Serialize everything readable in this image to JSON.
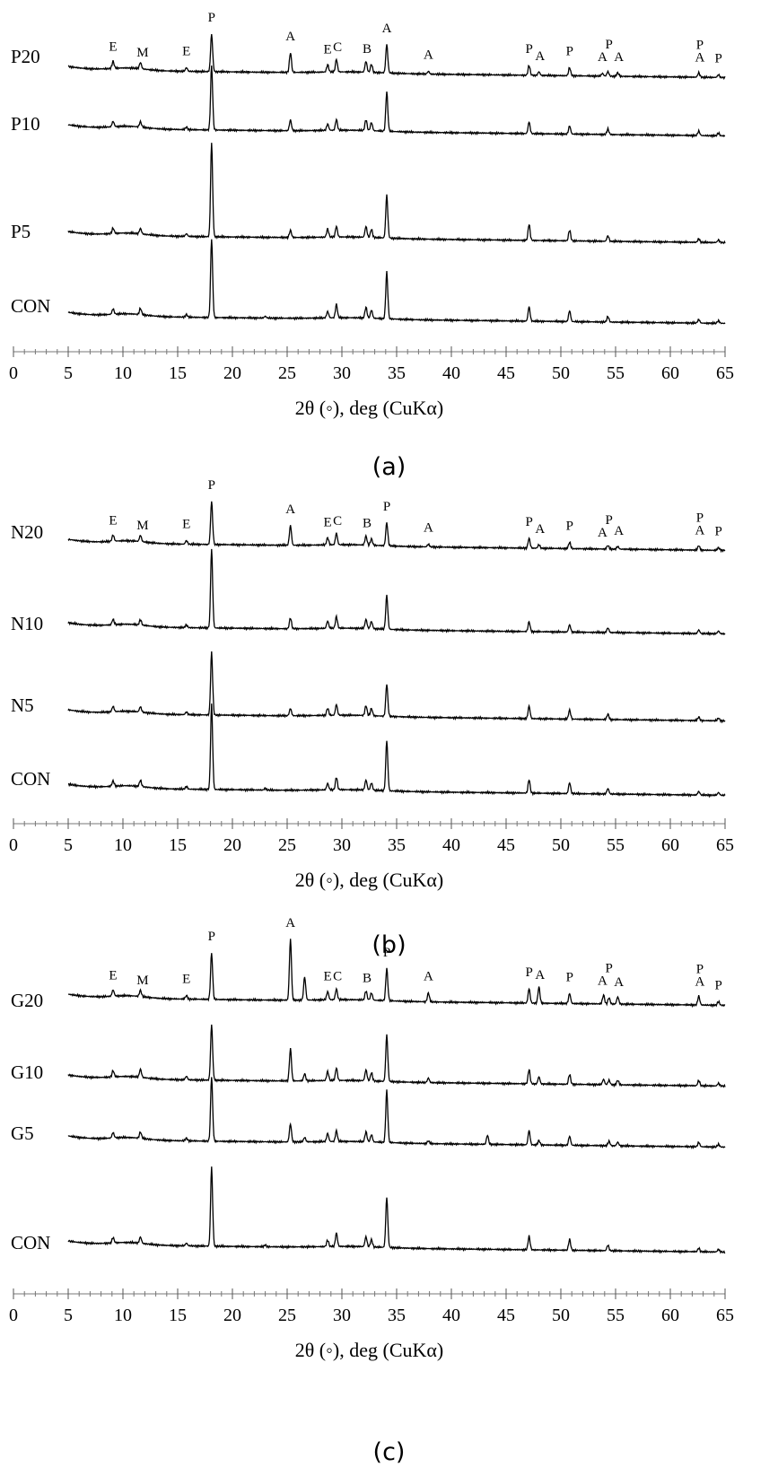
{
  "chart_data": [
    {
      "type": "line",
      "caption": "(a)",
      "xlabel": "2θ (◦), deg (CuKα)",
      "xlim": [
        0,
        65
      ],
      "xticks": [
        0,
        5,
        10,
        15,
        20,
        25,
        30,
        35,
        40,
        45,
        50,
        55,
        60,
        65
      ],
      "series": [
        {
          "name": "P20",
          "peaks": [
            [
              9.1,
              8
            ],
            [
              11.6,
              7
            ],
            [
              15.8,
              4
            ],
            [
              18.1,
              42
            ],
            [
              25.3,
              22
            ],
            [
              28.7,
              8
            ],
            [
              29.5,
              14
            ],
            [
              32.2,
              12
            ],
            [
              32.7,
              9
            ],
            [
              34.1,
              32
            ],
            [
              37.9,
              3
            ],
            [
              47.1,
              11
            ],
            [
              48.0,
              4
            ],
            [
              50.8,
              9
            ],
            [
              53.8,
              3
            ],
            [
              54.3,
              5
            ],
            [
              55.2,
              4
            ],
            [
              62.6,
              5
            ],
            [
              64.4,
              3
            ]
          ]
        },
        {
          "name": "P10",
          "peaks": [
            [
              9.1,
              6
            ],
            [
              11.6,
              6
            ],
            [
              15.8,
              3
            ],
            [
              18.1,
              72
            ],
            [
              25.3,
              12
            ],
            [
              28.7,
              7
            ],
            [
              29.5,
              12
            ],
            [
              32.2,
              12
            ],
            [
              32.7,
              9
            ],
            [
              34.1,
              44
            ],
            [
              47.1,
              13
            ],
            [
              50.8,
              9
            ],
            [
              54.3,
              6
            ],
            [
              62.6,
              5
            ],
            [
              64.4,
              3
            ]
          ]
        },
        {
          "name": "P5",
          "peaks": [
            [
              9.1,
              6
            ],
            [
              11.6,
              6
            ],
            [
              15.8,
              3
            ],
            [
              18.1,
              105
            ],
            [
              25.3,
              8
            ],
            [
              28.7,
              9
            ],
            [
              29.5,
              12
            ],
            [
              32.2,
              12
            ],
            [
              32.7,
              9
            ],
            [
              34.1,
              48
            ],
            [
              47.1,
              18
            ],
            [
              50.8,
              12
            ],
            [
              54.3,
              6
            ],
            [
              62.6,
              4
            ],
            [
              64.4,
              3
            ]
          ]
        },
        {
          "name": "CON",
          "peaks": [
            [
              9.1,
              6
            ],
            [
              11.6,
              7
            ],
            [
              15.8,
              3
            ],
            [
              18.1,
              88
            ],
            [
              23.0,
              2
            ],
            [
              28.7,
              7
            ],
            [
              29.5,
              15
            ],
            [
              32.2,
              12
            ],
            [
              32.7,
              9
            ],
            [
              34.1,
              52
            ],
            [
              47.1,
              16
            ],
            [
              50.8,
              12
            ],
            [
              54.3,
              6
            ],
            [
              62.6,
              4
            ],
            [
              64.4,
              3
            ]
          ]
        }
      ],
      "phase_labels": [
        {
          "text": "E",
          "x": 9.1
        },
        {
          "text": "M",
          "x": 11.8
        },
        {
          "text": "E",
          "x": 15.8
        },
        {
          "text": "P",
          "x": 18.1
        },
        {
          "text": "A",
          "x": 25.3
        },
        {
          "text": "E",
          "x": 28.7
        },
        {
          "text": "C",
          "x": 29.6
        },
        {
          "text": "B",
          "x": 32.3
        },
        {
          "text": "A",
          "x": 34.1
        },
        {
          "text": "A",
          "x": 37.9
        },
        {
          "text": "P",
          "x": 47.1
        },
        {
          "text": "A",
          "x": 48.1
        },
        {
          "text": "P",
          "x": 50.8
        },
        {
          "text": "A",
          "x": 53.8
        },
        {
          "text": "P",
          "x": 54.4
        },
        {
          "text": "A",
          "x": 55.3
        },
        {
          "text": "A",
          "x": 62.7
        },
        {
          "text": "P",
          "x": 62.7
        },
        {
          "text": "P",
          "x": 64.4
        }
      ]
    },
    {
      "type": "line",
      "caption": "(b)",
      "xlabel": "2θ (◦), deg (CuKα)",
      "xlim": [
        0,
        65
      ],
      "xticks": [
        0,
        5,
        10,
        15,
        20,
        25,
        30,
        35,
        40,
        45,
        50,
        55,
        60,
        65
      ],
      "series": [
        {
          "name": "N20",
          "peaks": [
            [
              9.1,
              7
            ],
            [
              11.6,
              7
            ],
            [
              15.8,
              4
            ],
            [
              18.1,
              48
            ],
            [
              25.3,
              22
            ],
            [
              28.7,
              8
            ],
            [
              29.5,
              13
            ],
            [
              32.2,
              10
            ],
            [
              32.7,
              7
            ],
            [
              34.1,
              26
            ],
            [
              37.9,
              3
            ],
            [
              47.1,
              11
            ],
            [
              48.0,
              4
            ],
            [
              50.8,
              7
            ],
            [
              54.3,
              4
            ],
            [
              55.2,
              3
            ],
            [
              62.6,
              5
            ],
            [
              64.4,
              3
            ]
          ]
        },
        {
          "name": "N10",
          "peaks": [
            [
              9.1,
              6
            ],
            [
              11.6,
              6
            ],
            [
              15.8,
              3
            ],
            [
              18.1,
              88
            ],
            [
              25.3,
              12
            ],
            [
              28.7,
              8
            ],
            [
              29.5,
              13
            ],
            [
              32.2,
              10
            ],
            [
              32.7,
              8
            ],
            [
              34.1,
              38
            ],
            [
              47.1,
              11
            ],
            [
              50.8,
              8
            ],
            [
              54.3,
              5
            ],
            [
              62.6,
              4
            ],
            [
              64.4,
              3
            ]
          ]
        },
        {
          "name": "N5",
          "peaks": [
            [
              9.1,
              6
            ],
            [
              11.6,
              6
            ],
            [
              15.8,
              3
            ],
            [
              18.1,
              70
            ],
            [
              25.3,
              8
            ],
            [
              28.7,
              8
            ],
            [
              29.5,
              12
            ],
            [
              32.2,
              11
            ],
            [
              32.7,
              8
            ],
            [
              34.1,
              36
            ],
            [
              47.1,
              14
            ],
            [
              50.8,
              10
            ],
            [
              54.3,
              6
            ],
            [
              62.6,
              4
            ],
            [
              64.4,
              3
            ]
          ]
        },
        {
          "name": "CON",
          "peaks": [
            [
              9.1,
              6
            ],
            [
              11.6,
              7
            ],
            [
              15.8,
              3
            ],
            [
              18.1,
              95
            ],
            [
              23.0,
              2
            ],
            [
              28.7,
              7
            ],
            [
              29.5,
              14
            ],
            [
              32.2,
              11
            ],
            [
              32.7,
              8
            ],
            [
              34.1,
              56
            ],
            [
              47.1,
              15
            ],
            [
              50.8,
              12
            ],
            [
              54.3,
              6
            ],
            [
              62.6,
              4
            ],
            [
              64.4,
              3
            ]
          ]
        }
      ],
      "phase_labels": [
        {
          "text": "E",
          "x": 9.1
        },
        {
          "text": "M",
          "x": 11.8
        },
        {
          "text": "E",
          "x": 15.8
        },
        {
          "text": "P",
          "x": 18.1
        },
        {
          "text": "A",
          "x": 25.3
        },
        {
          "text": "E",
          "x": 28.7
        },
        {
          "text": "C",
          "x": 29.6
        },
        {
          "text": "B",
          "x": 32.3
        },
        {
          "text": "P",
          "x": 34.1
        },
        {
          "text": "A",
          "x": 37.9
        },
        {
          "text": "P",
          "x": 47.1
        },
        {
          "text": "A",
          "x": 48.1
        },
        {
          "text": "P",
          "x": 50.8
        },
        {
          "text": "A",
          "x": 53.8
        },
        {
          "text": "P",
          "x": 54.4
        },
        {
          "text": "A",
          "x": 55.3
        },
        {
          "text": "A",
          "x": 62.7
        },
        {
          "text": "P",
          "x": 62.7
        },
        {
          "text": "P",
          "x": 64.4
        }
      ]
    },
    {
      "type": "line",
      "caption": "(c)",
      "xlabel": "2θ (◦), deg (CuKα)",
      "xlim": [
        0,
        65
      ],
      "xticks": [
        0,
        5,
        10,
        15,
        20,
        25,
        30,
        35,
        40,
        45,
        50,
        55,
        60,
        65
      ],
      "series": [
        {
          "name": "G20",
          "peaks": [
            [
              9.1,
              7
            ],
            [
              11.6,
              7
            ],
            [
              15.8,
              4
            ],
            [
              18.1,
              52
            ],
            [
              25.3,
              68
            ],
            [
              26.6,
              26
            ],
            [
              28.7,
              9
            ],
            [
              29.5,
              12
            ],
            [
              32.2,
              10
            ],
            [
              32.7,
              8
            ],
            [
              34.1,
              36
            ],
            [
              37.9,
              10
            ],
            [
              47.1,
              16
            ],
            [
              48.0,
              18
            ],
            [
              50.8,
              11
            ],
            [
              53.9,
              10
            ],
            [
              54.4,
              7
            ],
            [
              55.2,
              8
            ],
            [
              62.6,
              10
            ],
            [
              64.4,
              4
            ]
          ]
        },
        {
          "name": "G10",
          "peaks": [
            [
              9.1,
              7
            ],
            [
              11.6,
              9
            ],
            [
              15.8,
              4
            ],
            [
              18.1,
              62
            ],
            [
              25.3,
              36
            ],
            [
              26.6,
              8
            ],
            [
              28.7,
              10
            ],
            [
              29.5,
              14
            ],
            [
              32.2,
              12
            ],
            [
              32.7,
              9
            ],
            [
              34.1,
              52
            ],
            [
              37.9,
              5
            ],
            [
              47.1,
              16
            ],
            [
              48.0,
              8
            ],
            [
              50.8,
              11
            ],
            [
              53.9,
              6
            ],
            [
              54.4,
              5
            ],
            [
              55.2,
              5
            ],
            [
              62.6,
              6
            ],
            [
              64.4,
              3
            ]
          ]
        },
        {
          "name": "G5",
          "peaks": [
            [
              9.1,
              6
            ],
            [
              11.6,
              7
            ],
            [
              15.8,
              3
            ],
            [
              18.1,
              72
            ],
            [
              25.3,
              20
            ],
            [
              26.6,
              5
            ],
            [
              28.7,
              9
            ],
            [
              29.5,
              12
            ],
            [
              32.2,
              11
            ],
            [
              32.7,
              8
            ],
            [
              34.1,
              58
            ],
            [
              37.9,
              3
            ],
            [
              43.3,
              10
            ],
            [
              47.1,
              16
            ],
            [
              48.0,
              5
            ],
            [
              50.8,
              10
            ],
            [
              54.4,
              5
            ],
            [
              55.2,
              4
            ],
            [
              62.6,
              5
            ],
            [
              64.4,
              3
            ]
          ]
        },
        {
          "name": "CON",
          "peaks": [
            [
              9.1,
              6
            ],
            [
              11.6,
              7
            ],
            [
              15.8,
              3
            ],
            [
              18.1,
              88
            ],
            [
              23.0,
              2
            ],
            [
              28.7,
              7
            ],
            [
              29.5,
              15
            ],
            [
              32.2,
              11
            ],
            [
              32.7,
              8
            ],
            [
              34.1,
              56
            ],
            [
              47.1,
              15
            ],
            [
              50.8,
              12
            ],
            [
              54.3,
              6
            ],
            [
              62.6,
              4
            ],
            [
              64.4,
              3
            ]
          ]
        }
      ],
      "phase_labels": [
        {
          "text": "E",
          "x": 9.1
        },
        {
          "text": "M",
          "x": 11.8
        },
        {
          "text": "E",
          "x": 15.8
        },
        {
          "text": "P",
          "x": 18.1
        },
        {
          "text": "A",
          "x": 25.3
        },
        {
          "text": "E",
          "x": 28.7
        },
        {
          "text": "C",
          "x": 29.6
        },
        {
          "text": "B",
          "x": 32.3
        },
        {
          "text": "P",
          "x": 34.1
        },
        {
          "text": "A",
          "x": 37.9
        },
        {
          "text": "P",
          "x": 47.1
        },
        {
          "text": "A",
          "x": 48.1
        },
        {
          "text": "P",
          "x": 50.8
        },
        {
          "text": "A",
          "x": 53.8
        },
        {
          "text": "P",
          "x": 54.4
        },
        {
          "text": "A",
          "x": 55.3
        },
        {
          "text": "A",
          "x": 62.7
        },
        {
          "text": "P",
          "x": 62.7
        },
        {
          "text": "P",
          "x": 64.4
        }
      ]
    }
  ]
}
